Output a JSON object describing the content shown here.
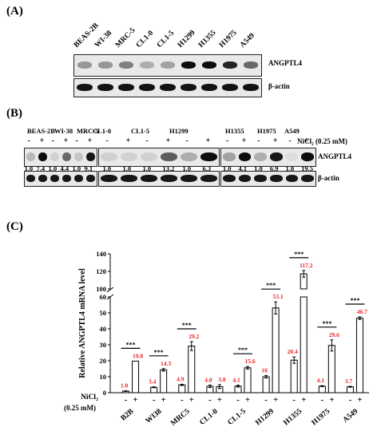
{
  "panelA": {
    "label": "(A)",
    "lanes": [
      "BEAS-2B",
      "WI-38",
      "MRC-5",
      "CL1-0",
      "CL1-5",
      "H1299",
      "H1355",
      "H1975",
      "A549"
    ],
    "row1_label": "ANGPTL4",
    "row2_label": "β-actin"
  },
  "panelB": {
    "label": "(B)",
    "groups": [
      {
        "lanes": [
          "BEAS-2B",
          "WI-38",
          "MRC-5"
        ]
      },
      {
        "lanes": [
          "CL1-0",
          "CL1-5",
          "H1299"
        ]
      },
      {
        "lanes": [
          "H1355",
          "H1975",
          "A549"
        ]
      }
    ],
    "treatment_label": "NiCl₂ (0.25 mM)",
    "minus": "-",
    "plus": "+",
    "row1_label": "ANGPTL4",
    "row2_label": "β-actin",
    "quant": [
      "1.0",
      "7.4",
      "1.0",
      "4.4",
      "1.0",
      "9.1",
      "1.0",
      "1.0",
      "1.0",
      "13.2",
      "1.0",
      "6.3",
      "1.0",
      "4.1",
      "1.0",
      "6.9",
      "1.0",
      "19.5"
    ]
  },
  "panelC": {
    "label": "(C)",
    "ylabel": "Relative ANGPTL4 mRNA level",
    "sig": "***",
    "nicl_label": "NiCl₂",
    "conc_label": "(0.25 mM)",
    "minus": "-",
    "plus": "+"
  },
  "chart_data": {
    "type": "bar",
    "categories": [
      "B2B",
      "WI38",
      "MRC5",
      "CL1-0",
      "CL1-5",
      "H1299",
      "H1355",
      "H1975",
      "A549"
    ],
    "series": [
      {
        "name": "-",
        "values": [
          1.0,
          3.4,
          4.9,
          4.0,
          4.1,
          10,
          20.4,
          4.1,
          3.7
        ],
        "errors": [
          0.2,
          0.3,
          0.4,
          0.8,
          0.6,
          0.8,
          2.0,
          0.3,
          0.3
        ]
      },
      {
        "name": "+",
        "values": [
          19.8,
          14.3,
          29.2,
          3.8,
          15.6,
          53.1,
          117.2,
          29.6,
          46.7
        ],
        "errors": [
          0,
          0.8,
          2.8,
          1.2,
          0.8,
          3.8,
          3.8,
          3.5,
          0.8
        ]
      }
    ],
    "value_labels_minus": [
      "1.0",
      "3.4",
      "4.9",
      "4.0",
      "4.1",
      "10",
      "20.4",
      "4.1",
      "3.7"
    ],
    "value_labels_plus": [
      "19.8",
      "14.3",
      "29.2",
      "3.8",
      "15.6",
      "53.1",
      "117.2",
      "29.6",
      "46.7"
    ],
    "significant": [
      true,
      true,
      true,
      false,
      true,
      true,
      true,
      true,
      true
    ],
    "ylabel": "Relative ANGPTL4 mRNA level",
    "yticks_lower": [
      "0",
      "10",
      "20",
      "30",
      "40",
      "50",
      "60"
    ],
    "yticks_upper": [
      "100",
      "120",
      "140"
    ],
    "axis_break": [
      60,
      100
    ],
    "label_color": "#e8262a"
  }
}
